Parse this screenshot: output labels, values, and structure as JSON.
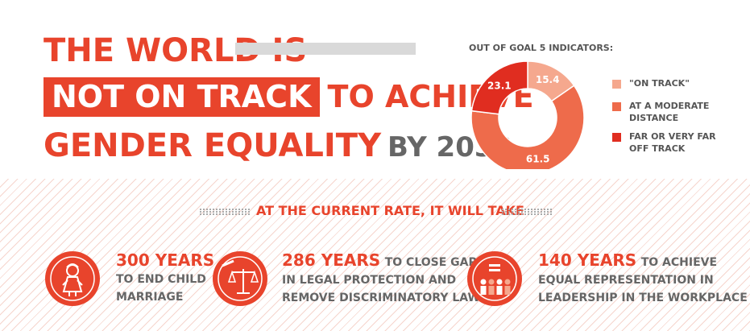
{
  "headline": {
    "line1": "THE WORLD IS",
    "highlight": "NOT ON TRACK",
    "line2_rest": "TO ACHIEVE",
    "line3": "GENDER EQUALITY",
    "line3_suffix": "BY 2030"
  },
  "colors": {
    "accent": "#e8442c",
    "on_track": "#f5a88e",
    "moderate": "#ee6b4b",
    "far_off": "#e02d20",
    "gray_text": "#666666"
  },
  "chart_data": {
    "type": "pie",
    "title": "OUT OF GOAL 5 INDICATORS:",
    "categories": [
      "\"ON TRACK\"",
      "AT A MODERATE DISTANCE",
      "FAR OR VERY FAR OFF TRACK"
    ],
    "values": [
      15.4,
      61.5,
      23.1
    ],
    "value_labels": [
      "15.4",
      "61.5",
      "23.1"
    ],
    "donut": true,
    "legend_position": "right"
  },
  "legend": [
    {
      "line1": "\"ON TRACK\"",
      "line2": ""
    },
    {
      "line1": "AT A MODERATE",
      "line2": "DISTANCE"
    },
    {
      "line1": "FAR OR VERY FAR",
      "line2": "OFF TRACK"
    }
  ],
  "rate_heading": "AT THE CURRENT RATE, IT WILL TAKE",
  "stats": [
    {
      "icon": "child-bride-icon",
      "big": "300 YEARS",
      "lead": "",
      "line2": "TO END CHILD",
      "line3": "MARRIAGE"
    },
    {
      "icon": "scales-of-justice-icon",
      "big": "286 YEARS",
      "lead": "TO CLOSE GAPS",
      "line2": "IN LEGAL PROTECTION AND",
      "line3": "REMOVE DISCRIMINATORY LAWS"
    },
    {
      "icon": "equal-representation-icon",
      "big": "140 YEARS",
      "lead": "TO ACHIEVE",
      "line2": "EQUAL REPRESENTATION IN",
      "line3": "LEADERSHIP IN THE WORKPLACE"
    }
  ]
}
